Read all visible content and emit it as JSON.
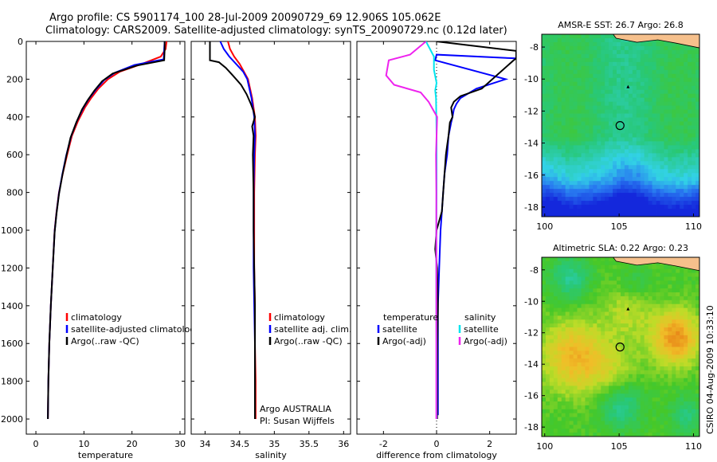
{
  "title": {
    "line1": "Argo profile: CS 5901174_100 28-Jul-2009 20090729_69 12.906S 105.062E",
    "line2": "Climatology: CARS2009. Satellite-adjusted climatology: synTS_20090729.nc (0.12d later)"
  },
  "side_label": "CSIRO 04-Aug-2009 10:33:10",
  "colors": {
    "climatology": "#ff0000",
    "satellite": "#0000ff",
    "argo": "#000000",
    "salinity_satellite": "#00e5ee",
    "salinity_argo": "#ee22ee",
    "land": "#f6c08c"
  },
  "chart_data": [
    {
      "type": "line",
      "xlabel": "temperature",
      "xlim": [
        -2,
        31
      ],
      "ylim": [
        2080,
        0
      ],
      "xticks": [
        0,
        10,
        20,
        30
      ],
      "yticks": [
        0,
        200,
        400,
        600,
        800,
        1000,
        1200,
        1400,
        1600,
        1800,
        2000
      ],
      "legend": {
        "placement": "bottom-right",
        "entries": [
          "climatology",
          "satellite-adjusted climatology",
          "Argo(..raw -QC)"
        ]
      },
      "series": [
        {
          "name": "climatology",
          "color": "#ff0000",
          "x": [
            27.2,
            27.0,
            26.0,
            22.0,
            17.5,
            15.0,
            13.0,
            11.5,
            10.2,
            8.8,
            7.5,
            6.5,
            5.6,
            4.8,
            4.3,
            3.9,
            3.5,
            3.1,
            2.8,
            2.6,
            2.5
          ],
          "y": [
            0,
            40,
            80,
            120,
            160,
            200,
            250,
            300,
            350,
            420,
            500,
            600,
            700,
            800,
            900,
            1000,
            1200,
            1400,
            1600,
            1800,
            2000
          ]
        },
        {
          "name": "satellite-adjusted climatology",
          "color": "#0000ff",
          "x": [
            26.8,
            26.7,
            26.6,
            20.5,
            16.5,
            14.2,
            12.5,
            11.0,
            9.8,
            8.5,
            7.3,
            6.3,
            5.5,
            4.8,
            4.3,
            3.9,
            3.5,
            3.1,
            2.8,
            2.6,
            2.5
          ],
          "y": [
            0,
            40,
            95,
            125,
            165,
            205,
            255,
            305,
            355,
            425,
            505,
            605,
            705,
            805,
            905,
            1005,
            1200,
            1400,
            1600,
            1800,
            2000
          ]
        },
        {
          "name": "Argo(..raw -QC)",
          "color": "#000000",
          "x": [
            26.8,
            26.8,
            26.7,
            21.0,
            16.0,
            13.8,
            12.2,
            10.8,
            9.6,
            8.4,
            7.2,
            6.3,
            5.5,
            4.8,
            4.3,
            3.9,
            3.5,
            3.1,
            2.8,
            2.6,
            2.5
          ],
          "y": [
            0,
            40,
            100,
            128,
            170,
            210,
            260,
            310,
            360,
            430,
            510,
            610,
            710,
            810,
            910,
            1010,
            1200,
            1400,
            1600,
            1800,
            2000
          ]
        }
      ]
    },
    {
      "type": "line",
      "xlabel": "salinity",
      "xlim": [
        33.8,
        36.1
      ],
      "ylim": [
        2080,
        0
      ],
      "xticks": [
        34,
        34.5,
        35,
        35.5,
        36
      ],
      "legend": {
        "placement": "bottom-right",
        "entries": [
          "climatology",
          "satellite adj. clim.",
          "Argo(..raw -QC)"
        ]
      },
      "annotations": [
        "Argo AUSTRALIA",
        "PI: Susan Wijffels"
      ],
      "series": [
        {
          "name": "climatology",
          "color": "#ff0000",
          "x": [
            34.33,
            34.36,
            34.42,
            34.5,
            34.56,
            34.62,
            34.68,
            34.72,
            34.73,
            34.72,
            34.71,
            34.71,
            34.71,
            34.72,
            34.72,
            34.73,
            34.73,
            34.73
          ],
          "y": [
            0,
            40,
            80,
            120,
            160,
            200,
            300,
            400,
            500,
            600,
            800,
            1000,
            1200,
            1400,
            1600,
            1800,
            1950,
            2000
          ]
        },
        {
          "name": "satellite adj. clim.",
          "color": "#0000ff",
          "x": [
            34.22,
            34.27,
            34.35,
            34.45,
            34.55,
            34.61,
            34.67,
            34.71,
            34.72,
            34.71,
            34.7,
            34.7,
            34.7,
            34.71,
            34.72,
            34.72,
            34.72,
            34.72
          ],
          "y": [
            0,
            40,
            80,
            120,
            160,
            200,
            300,
            400,
            500,
            600,
            800,
            1000,
            1200,
            1400,
            1600,
            1800,
            1950,
            2000
          ]
        },
        {
          "name": "Argo(..raw -QC)",
          "color": "#000000",
          "x": [
            34.07,
            34.07,
            34.2,
            34.3,
            34.4,
            34.52,
            34.6,
            34.66,
            34.7,
            34.72,
            34.68,
            34.7,
            34.69,
            34.7,
            34.7,
            34.71,
            34.72,
            34.72,
            34.72,
            34.72
          ],
          "y": [
            0,
            100,
            110,
            140,
            180,
            230,
            280,
            330,
            370,
            400,
            450,
            500,
            600,
            800,
            1000,
            1200,
            1400,
            1600,
            1800,
            2000
          ]
        }
      ]
    },
    {
      "type": "line",
      "xlabel": "difference from climatology",
      "xlim": [
        -3,
        3
      ],
      "ylim": [
        2080,
        0
      ],
      "xticks": [
        -2,
        0,
        2
      ],
      "legend": {
        "placement": "bottom",
        "groups": [
          {
            "header": "temperature",
            "entries": [
              "satellite",
              "Argo(-adj)"
            ]
          },
          {
            "header": "salinity",
            "entries": [
              "satellite",
              "Argo(-adj)"
            ]
          }
        ]
      },
      "series": [
        {
          "name": "temperature satellite",
          "color": "#0000ff",
          "x": [
            3.0,
            0.0,
            -0.05,
            2.6,
            1.5,
            0.9,
            0.75,
            0.65,
            0.6,
            0.55,
            0.45,
            0.4,
            0.3,
            0.25,
            0.2,
            0.15,
            0.1,
            0.05,
            0.05,
            0.05,
            0.05
          ],
          "y": [
            90,
            70,
            100,
            200,
            250,
            300,
            330,
            360,
            400,
            430,
            500,
            600,
            700,
            800,
            900,
            1000,
            1200,
            1400,
            1600,
            1800,
            1980
          ]
        },
        {
          "name": "temperature Argo(-adj)",
          "color": "#000000",
          "x": [
            0.0,
            3.0,
            3.0,
            2.9,
            1.7,
            0.9,
            0.65,
            0.55,
            0.6,
            0.5,
            0.45,
            0.4,
            0.35,
            0.3,
            0.25,
            0.2,
            0.0,
            -0.05,
            0.02,
            0.05,
            0.03,
            0.02,
            0.02
          ],
          "y": [
            0,
            50,
            90,
            100,
            250,
            290,
            320,
            350,
            400,
            430,
            500,
            550,
            600,
            700,
            800,
            900,
            1000,
            1100,
            1200,
            1400,
            1600,
            1800,
            2000
          ]
        },
        {
          "name": "salinity satellite",
          "color": "#00e5ee",
          "x": [
            -0.4,
            -0.1,
            -0.1,
            0.0,
            -0.05,
            -0.02,
            -0.01,
            0.0,
            0.0,
            0.0,
            -0.01,
            -0.01,
            -0.01,
            0.0,
            0.0,
            0.0
          ],
          "y": [
            0,
            80,
            150,
            220,
            260,
            300,
            400,
            500,
            600,
            800,
            1000,
            1200,
            1400,
            1600,
            1800,
            2000
          ]
        },
        {
          "name": "salinity Argo(-adj)",
          "color": "#ee22ee",
          "x": [
            -0.4,
            -1.0,
            -1.8,
            -1.9,
            -1.6,
            -0.6,
            -0.3,
            -0.1,
            0.02,
            0.0,
            -0.02,
            -0.01,
            -0.01,
            -0.01,
            -0.01,
            -0.01
          ],
          "y": [
            0,
            70,
            100,
            180,
            230,
            270,
            320,
            370,
            400,
            500,
            600,
            800,
            1000,
            1400,
            1800,
            2000
          ]
        }
      ]
    },
    {
      "type": "heatmap",
      "title": "AMSR-E SST: 26.7 Argo: 26.8",
      "xlim": [
        99.8,
        110.4
      ],
      "ylim": [
        -18.6,
        -7.2
      ],
      "xticks": [
        100,
        105,
        110
      ],
      "yticks": [
        -8,
        -10,
        -12,
        -14,
        -16,
        -18
      ],
      "argo_position": {
        "lon": 105.062,
        "lat": -12.906
      },
      "island_position": {
        "lon": 105.6,
        "lat": -10.5
      }
    },
    {
      "type": "heatmap",
      "title": "Altimetric SLA: 0.22 Argo: 0.23",
      "xlim": [
        99.8,
        110.4
      ],
      "ylim": [
        -18.6,
        -7.2
      ],
      "xticks": [
        100,
        105,
        110
      ],
      "yticks": [
        -8,
        -10,
        -12,
        -14,
        -16,
        -18
      ],
      "argo_position": {
        "lon": 105.062,
        "lat": -12.906
      },
      "island_position": {
        "lon": 105.6,
        "lat": -10.5
      }
    }
  ]
}
